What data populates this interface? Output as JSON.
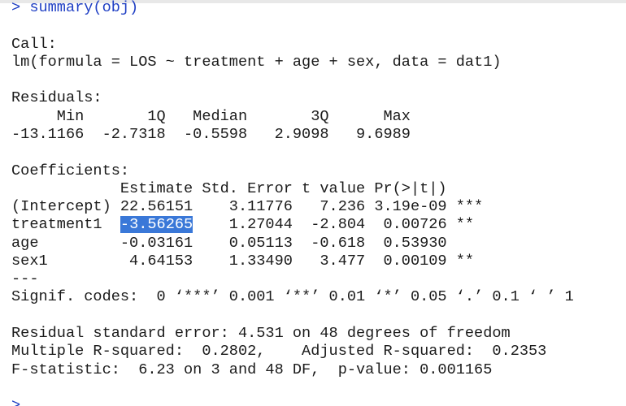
{
  "console": {
    "command": "> summary(obj)",
    "call": {
      "label": "Call:",
      "formula": "lm(formula = LOS ~ treatment + age + sex, data = dat1)"
    },
    "residuals": {
      "label": "Residuals:",
      "header": "     Min       1Q   Median       3Q      Max",
      "values": "-13.1166  -2.7318  -0.5598   2.9098   9.6989"
    },
    "coefficients": {
      "label": "Coefficients:",
      "header": "            Estimate Std. Error t value Pr(>|t|)",
      "intercept_row": "(Intercept) 22.56151    3.11776   7.236 3.19e-09 ***",
      "treatment_row": {
        "name": "treatment1  ",
        "estimate": "-3.56265",
        "rest": "    1.27044  -2.804  0.00726 **"
      },
      "age_row": "age         -0.03161    0.05113  -0.618  0.53930",
      "sex_row": "sex1         4.64153    1.33490   3.477  0.00109 **",
      "separator": "---",
      "signif_codes": "Signif. codes:  0 ‘***’ 0.001 ‘**’ 0.01 ‘*’ 0.05 ‘.’ 0.1 ‘ ’ 1"
    },
    "summary": {
      "rse": "Residual standard error: 4.531 on 48 degrees of freedom",
      "r_squared": "Multiple R-squared:  0.2802,    Adjusted R-squared:  0.2353",
      "f_statistic": "F-statistic:  6.23 on 3 and 48 DF,  p-value: 0.001165"
    },
    "next_prompt": ">"
  }
}
